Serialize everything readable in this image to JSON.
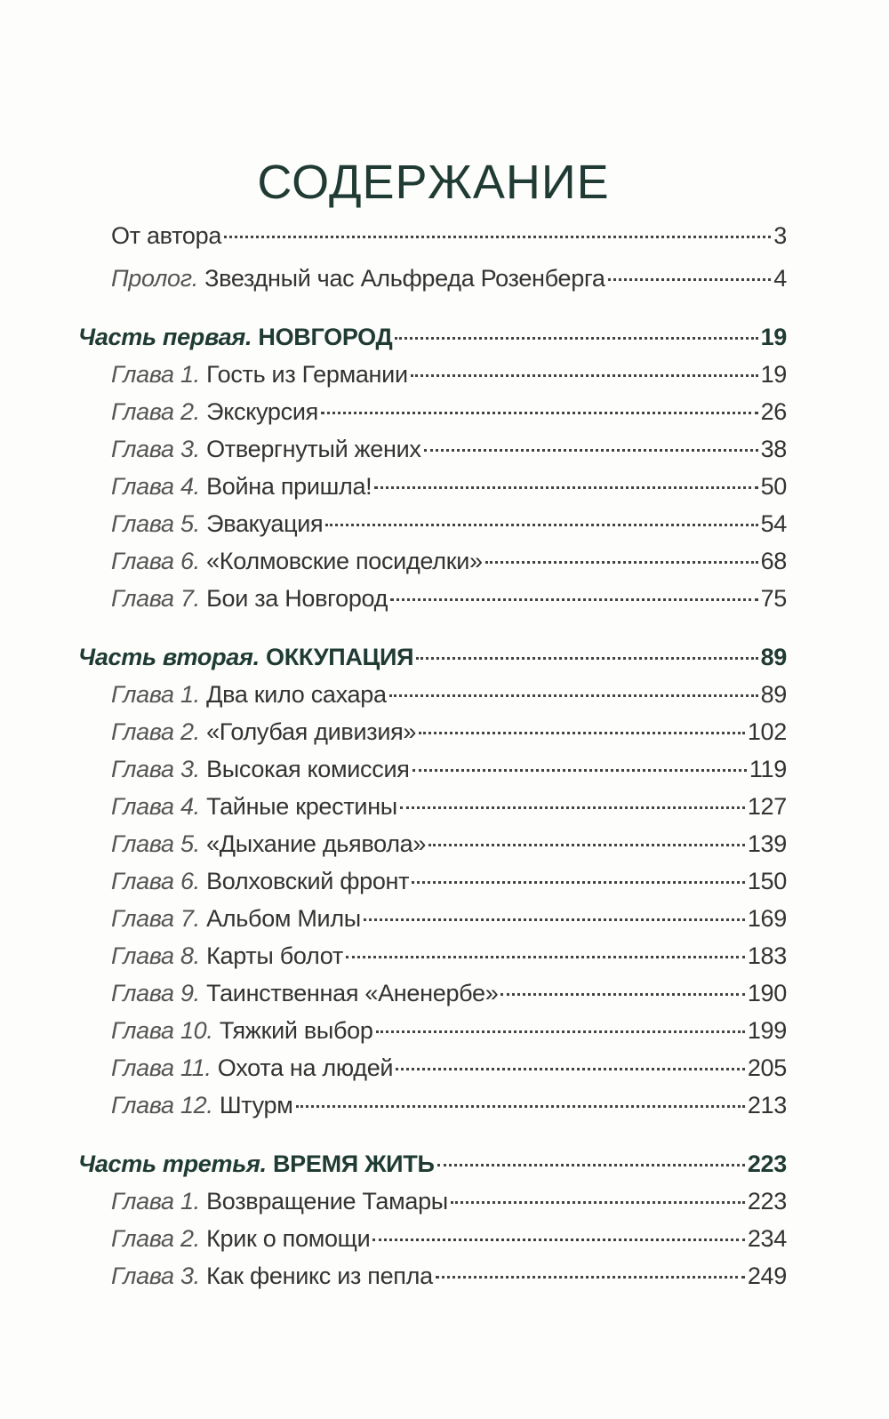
{
  "title": "СОДЕРЖАНИЕ",
  "intro": [
    {
      "label": "",
      "name": "От автора",
      "page": "3"
    },
    {
      "label": "Пролог.",
      "name": "Звездный час Альфреда Розенберга",
      "page": "4"
    }
  ],
  "parts": [
    {
      "label": "Часть первая.",
      "name": "НОВГОРОД",
      "page": "19",
      "chapters": [
        {
          "label": "Глава 1.",
          "name": "Гость из Германии",
          "page": "19"
        },
        {
          "label": "Глава 2.",
          "name": "Экскурсия",
          "page": "26"
        },
        {
          "label": "Глава 3.",
          "name": "Отвергнутый жених",
          "page": "38"
        },
        {
          "label": "Глава 4.",
          "name": "Война пришла!",
          "page": "50"
        },
        {
          "label": "Глава 5.",
          "name": "Эвакуация",
          "page": "54"
        },
        {
          "label": "Глава 6.",
          "name": "«Колмовские посиделки»",
          "page": "68"
        },
        {
          "label": "Глава 7.",
          "name": "Бои за Новгород",
          "page": "75"
        }
      ]
    },
    {
      "label": "Часть вторая.",
      "name": "ОККУПАЦИЯ",
      "page": "89",
      "chapters": [
        {
          "label": "Глава 1.",
          "name": "Два кило сахара",
          "page": "89"
        },
        {
          "label": "Глава 2.",
          "name": "«Голубая дивизия»",
          "page": "102"
        },
        {
          "label": "Глава 3.",
          "name": "Высокая комиссия",
          "page": "119"
        },
        {
          "label": "Глава 4.",
          "name": "Тайные крестины",
          "page": "127"
        },
        {
          "label": "Глава 5.",
          "name": "«Дыхание дьявола»",
          "page": "139"
        },
        {
          "label": "Глава 6.",
          "name": "Волховский фронт",
          "page": "150"
        },
        {
          "label": "Глава 7.",
          "name": "Альбом Милы",
          "page": "169"
        },
        {
          "label": "Глава 8.",
          "name": "Карты болот",
          "page": "183"
        },
        {
          "label": "Глава 9.",
          "name": "Таинственная «Аненербе»",
          "page": "190"
        },
        {
          "label": "Глава 10.",
          "name": "Тяжкий выбор",
          "page": "199"
        },
        {
          "label": "Глава 11.",
          "name": "Охота на людей",
          "page": "205"
        },
        {
          "label": "Глава 12.",
          "name": "Штурм",
          "page": "213"
        }
      ]
    },
    {
      "label": "Часть третья.",
      "name": "ВРЕМЯ ЖИТЬ",
      "page": "223",
      "chapters": [
        {
          "label": "Глава 1.",
          "name": "Возвращение Тамары",
          "page": "223"
        },
        {
          "label": "Глава 2.",
          "name": "Крик о помощи",
          "page": "234"
        },
        {
          "label": "Глава 3.",
          "name": "Как феникс из пепла",
          "page": "249"
        }
      ]
    }
  ],
  "colors": {
    "heading": "#1f3b33",
    "text": "#333333"
  }
}
